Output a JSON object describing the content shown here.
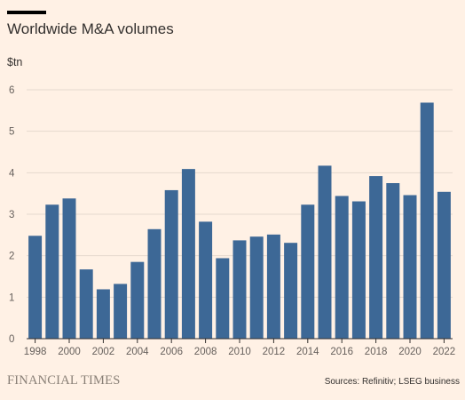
{
  "chart_data": {
    "type": "bar",
    "title": "Worldwide M&A volumes",
    "ylabel": "$tn",
    "xlabel": "",
    "categories": [
      "1998",
      "1999",
      "2000",
      "2001",
      "2002",
      "2003",
      "2004",
      "2005",
      "2006",
      "2007",
      "2008",
      "2009",
      "2010",
      "2011",
      "2012",
      "2013",
      "2014",
      "2015",
      "2016",
      "2017",
      "2018",
      "2019",
      "2020",
      "2021",
      "2022"
    ],
    "values": [
      2.48,
      3.23,
      3.38,
      1.67,
      1.19,
      1.32,
      1.85,
      2.64,
      3.58,
      4.09,
      2.82,
      1.94,
      2.37,
      2.46,
      2.51,
      2.31,
      3.23,
      4.17,
      3.44,
      3.31,
      3.92,
      3.75,
      3.46,
      5.69,
      3.54
    ],
    "x_tick_labels": [
      "1998",
      "2000",
      "2002",
      "2004",
      "2006",
      "2008",
      "2010",
      "2012",
      "2014",
      "2016",
      "2018",
      "2020",
      "2022"
    ],
    "y_ticks": [
      0,
      1,
      2,
      3,
      4,
      5,
      6
    ],
    "ylim": [
      0,
      6
    ],
    "grid": true,
    "bar_color": "#3d6896"
  },
  "footer": {
    "brand": "FINANCIAL TIMES",
    "source": "Sources: Refinitiv; LSEG business"
  },
  "colors": {
    "background": "#fff1e5",
    "bar": "#3d6896",
    "gridline": "#e6d9ce",
    "axis": "#33302e"
  }
}
